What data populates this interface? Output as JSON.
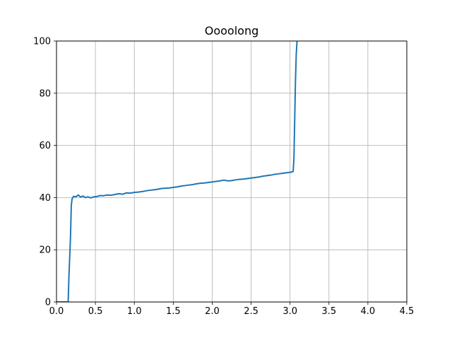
{
  "chart_data": {
    "type": "line",
    "title": "Oooolong",
    "xlabel": "",
    "ylabel": "",
    "xlim": [
      0,
      4.5
    ],
    "ylim": [
      0,
      100
    ],
    "grid": true,
    "x_ticks": [
      "0.0",
      "0.5",
      "1.0",
      "1.5",
      "2.0",
      "2.5",
      "3.0",
      "3.5",
      "4.0",
      "4.5"
    ],
    "y_ticks": [
      "0",
      "20",
      "40",
      "60",
      "80",
      "100"
    ],
    "series": [
      {
        "color": "#1f77b4",
        "points": [
          [
            0.0,
            0.0
          ],
          [
            0.13,
            0.0
          ],
          [
            0.15,
            0.0
          ],
          [
            0.16,
            10.0
          ],
          [
            0.18,
            25.0
          ],
          [
            0.19,
            37.0
          ],
          [
            0.2,
            39.5
          ],
          [
            0.22,
            40.5
          ],
          [
            0.25,
            40.3
          ],
          [
            0.28,
            41.0
          ],
          [
            0.31,
            40.2
          ],
          [
            0.34,
            40.6
          ],
          [
            0.37,
            40.0
          ],
          [
            0.4,
            40.3
          ],
          [
            0.44,
            39.9
          ],
          [
            0.48,
            40.3
          ],
          [
            0.52,
            40.4
          ],
          [
            0.56,
            40.8
          ],
          [
            0.6,
            40.7
          ],
          [
            0.65,
            41.0
          ],
          [
            0.7,
            40.9
          ],
          [
            0.75,
            41.2
          ],
          [
            0.8,
            41.5
          ],
          [
            0.85,
            41.3
          ],
          [
            0.9,
            41.8
          ],
          [
            0.95,
            41.7
          ],
          [
            1.0,
            42.0
          ],
          [
            1.05,
            42.1
          ],
          [
            1.1,
            42.3
          ],
          [
            1.15,
            42.6
          ],
          [
            1.2,
            42.8
          ],
          [
            1.25,
            43.0
          ],
          [
            1.3,
            43.2
          ],
          [
            1.35,
            43.5
          ],
          [
            1.4,
            43.6
          ],
          [
            1.45,
            43.7
          ],
          [
            1.5,
            43.9
          ],
          [
            1.55,
            44.1
          ],
          [
            1.6,
            44.4
          ],
          [
            1.65,
            44.6
          ],
          [
            1.7,
            44.8
          ],
          [
            1.75,
            45.0
          ],
          [
            1.8,
            45.3
          ],
          [
            1.85,
            45.5
          ],
          [
            1.9,
            45.6
          ],
          [
            1.95,
            45.8
          ],
          [
            2.0,
            46.0
          ],
          [
            2.05,
            46.2
          ],
          [
            2.1,
            46.4
          ],
          [
            2.15,
            46.7
          ],
          [
            2.2,
            46.4
          ],
          [
            2.25,
            46.5
          ],
          [
            2.3,
            46.8
          ],
          [
            2.35,
            47.0
          ],
          [
            2.4,
            47.1
          ],
          [
            2.45,
            47.3
          ],
          [
            2.5,
            47.5
          ],
          [
            2.55,
            47.7
          ],
          [
            2.6,
            47.9
          ],
          [
            2.65,
            48.2
          ],
          [
            2.7,
            48.4
          ],
          [
            2.75,
            48.6
          ],
          [
            2.8,
            48.9
          ],
          [
            2.85,
            49.1
          ],
          [
            2.9,
            49.3
          ],
          [
            2.95,
            49.5
          ],
          [
            3.0,
            49.7
          ],
          [
            3.03,
            49.9
          ],
          [
            3.04,
            50.0
          ],
          [
            3.05,
            55.0
          ],
          [
            3.06,
            70.0
          ],
          [
            3.07,
            85.0
          ],
          [
            3.08,
            95.0
          ],
          [
            3.09,
            100.0
          ],
          [
            3.1,
            102.0
          ]
        ]
      }
    ]
  }
}
